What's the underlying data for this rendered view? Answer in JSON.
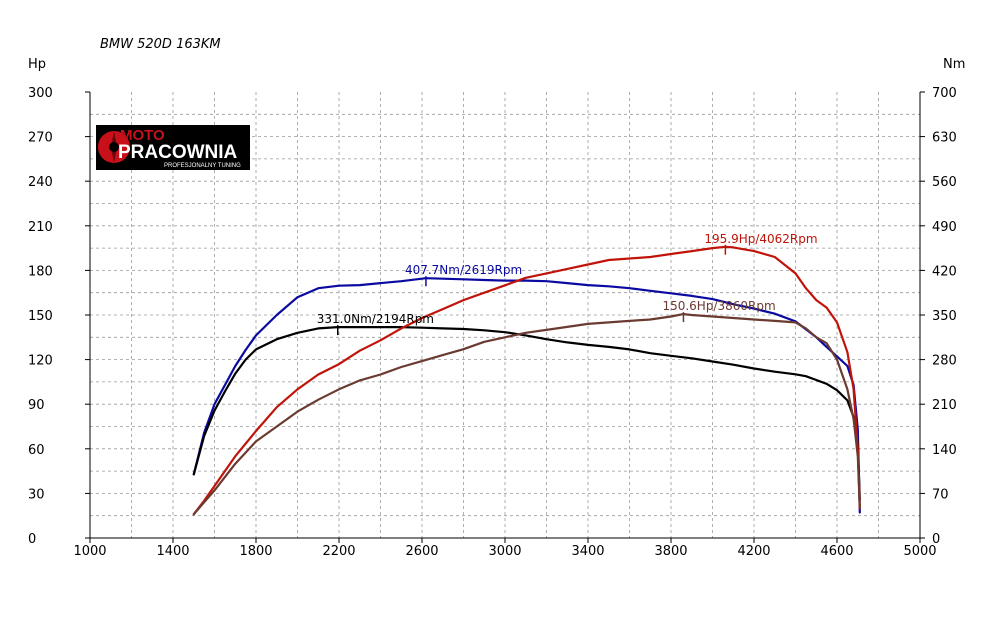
{
  "chart_data": {
    "type": "line",
    "title": "BMW 520D 163KM",
    "left_unit": "Hp",
    "right_unit": "Nm",
    "x_ticks": [
      1000,
      1400,
      1800,
      2200,
      2600,
      3000,
      3400,
      3800,
      4200,
      4600,
      5000
    ],
    "left_ticks": [
      0,
      30,
      60,
      90,
      120,
      150,
      180,
      210,
      240,
      270,
      300
    ],
    "right_ticks": [
      0,
      70,
      140,
      210,
      280,
      350,
      420,
      490,
      560,
      630,
      700
    ],
    "xlim": [
      1000,
      5000
    ],
    "ylim_left": [
      0,
      300
    ],
    "ylim_right": [
      0,
      700
    ],
    "grid": true,
    "series": [
      {
        "axis": "right",
        "color": "#0a0aa0",
        "x": [
          1500,
          1550,
          1600,
          1650,
          1700,
          1750,
          1800,
          1900,
          2000,
          2100,
          2200,
          2300,
          2400,
          2500,
          2619,
          2700,
          2800,
          2900,
          3000,
          3100,
          3200,
          3300,
          3400,
          3500,
          3600,
          3700,
          3800,
          3900,
          4000,
          4100,
          4200,
          4300,
          4400,
          4500,
          4550,
          4600,
          4650,
          4680,
          4700,
          4710
        ],
        "y": [
          100,
          165,
          210,
          240,
          270,
          295,
          318,
          350,
          378,
          392,
          396,
          397,
          400,
          403,
          407.7,
          407,
          406,
          405,
          404,
          404,
          403,
          400,
          397,
          395,
          392,
          388,
          384,
          380,
          375,
          367,
          360,
          352,
          340,
          315,
          300,
          285,
          270,
          240,
          170,
          40
        ]
      },
      {
        "axis": "right",
        "color": "#000000",
        "x": [
          1500,
          1550,
          1600,
          1650,
          1700,
          1750,
          1800,
          1900,
          2000,
          2100,
          2194,
          2300,
          2400,
          2500,
          2600,
          2700,
          2800,
          2900,
          3000,
          3100,
          3200,
          3300,
          3400,
          3500,
          3600,
          3700,
          3800,
          3900,
          4000,
          4100,
          4200,
          4300,
          4400,
          4450,
          4500,
          4550,
          4600,
          4650,
          4680,
          4700,
          4710
        ],
        "y": [
          100,
          160,
          200,
          230,
          258,
          280,
          296,
          312,
          322,
          329,
          331,
          331,
          331,
          331,
          330,
          329,
          328,
          326,
          323,
          318,
          312,
          307,
          303,
          300,
          296,
          290,
          286,
          282,
          277,
          272,
          266,
          261,
          257,
          254,
          248,
          242,
          232,
          216,
          190,
          150,
          60
        ]
      },
      {
        "axis": "left",
        "color": "#c0140a",
        "x": [
          1500,
          1550,
          1600,
          1700,
          1800,
          1900,
          2000,
          2100,
          2200,
          2300,
          2400,
          2500,
          2600,
          2700,
          2800,
          2900,
          3000,
          3100,
          3200,
          3300,
          3400,
          3500,
          3600,
          3700,
          3800,
          3900,
          4000,
          4062,
          4100,
          4200,
          4300,
          4400,
          4450,
          4500,
          4550,
          4600,
          4650,
          4680,
          4700,
          4710
        ],
        "y": [
          16,
          25,
          35,
          55,
          72,
          88,
          100,
          110,
          117,
          126,
          133,
          141,
          148,
          154,
          160,
          165,
          170,
          175,
          178,
          181,
          184,
          187,
          188,
          189,
          191,
          193,
          195,
          195.9,
          195.5,
          193,
          189,
          178,
          168,
          160,
          155,
          145,
          125,
          100,
          60,
          20
        ]
      },
      {
        "axis": "left",
        "color": "#6b3a30",
        "x": [
          1500,
          1550,
          1600,
          1700,
          1800,
          1900,
          2000,
          2100,
          2200,
          2300,
          2400,
          2500,
          2600,
          2700,
          2800,
          2900,
          3000,
          3100,
          3200,
          3300,
          3400,
          3500,
          3600,
          3700,
          3800,
          3860,
          3900,
          4000,
          4100,
          4200,
          4300,
          4400,
          4450,
          4500,
          4550,
          4600,
          4650,
          4680,
          4700,
          4710
        ],
        "y": [
          16,
          24,
          32,
          50,
          65,
          75,
          85,
          93,
          100,
          106,
          110,
          115,
          119,
          123,
          127,
          132,
          135,
          138,
          140,
          142,
          144,
          145,
          146,
          147,
          149,
          150.6,
          150,
          149,
          148,
          147,
          146,
          145,
          141,
          135,
          131,
          120,
          100,
          80,
          55,
          20
        ]
      }
    ],
    "annotations": [
      {
        "text": "331.0Nm/2194Rpm",
        "x": 2194,
        "y": 331,
        "axis": "right",
        "color": "#000000"
      },
      {
        "text": "407.7Nm/2619Rpm",
        "x": 2619,
        "y": 407.7,
        "axis": "right",
        "color": "#0a0aa0"
      },
      {
        "text": "195.9Hp/4062Rpm",
        "x": 4062,
        "y": 195.9,
        "axis": "left",
        "color": "#c0140a"
      },
      {
        "text": "150.6Hp/3860Rpm",
        "x": 3860,
        "y": 150.6,
        "axis": "left",
        "color": "#6b3a30"
      }
    ]
  },
  "logo": {
    "line1": "MOTO",
    "line2": "PRACOWNIA",
    "tagline": "PROFESJONALNY TUNING"
  }
}
